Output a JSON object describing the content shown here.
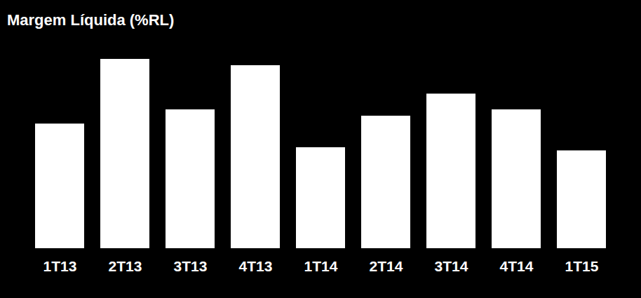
{
  "chart_data": {
    "type": "bar",
    "title": "Margem Líquida (%RL)",
    "categories": [
      "1T13",
      "2T13",
      "3T13",
      "4T13",
      "1T14",
      "2T14",
      "3T14",
      "4T14",
      "1T15"
    ],
    "values": [
      7.9,
      12.0,
      8.8,
      11.6,
      6.4,
      8.4,
      9.8,
      8.8,
      6.2
    ],
    "color": "#ffffff",
    "ylim": [
      0,
      12
    ],
    "grid": false,
    "tick_labels": "x"
  }
}
